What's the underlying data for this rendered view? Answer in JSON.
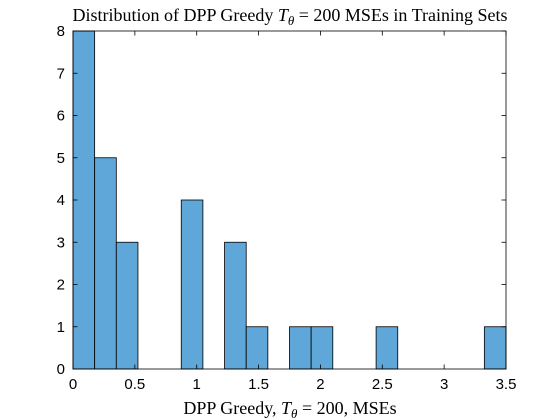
{
  "chart_data": {
    "type": "bar",
    "title": {
      "prefix": "Distribution of DPP Greedy ",
      "math_var": "T",
      "math_sub": "θ",
      "suffix": " = 200 MSEs in Training Sets"
    },
    "xlabel": {
      "prefix": "DPP Greedy, ",
      "math_var": "T",
      "math_sub": "θ",
      "suffix": " = 200, MSEs"
    },
    "ylabel": "",
    "xlim": [
      0,
      3.5
    ],
    "ylim": [
      0,
      8
    ],
    "x_ticks": [
      0,
      0.5,
      1,
      1.5,
      2,
      2.5,
      3,
      3.5
    ],
    "x_tick_labels": [
      "0",
      "0.5",
      "1",
      "1.5",
      "2",
      "2.5",
      "3",
      "3.5"
    ],
    "y_ticks": [
      0,
      1,
      2,
      3,
      4,
      5,
      6,
      7,
      8
    ],
    "y_tick_labels": [
      "0",
      "1",
      "2",
      "3",
      "4",
      "5",
      "6",
      "7",
      "8"
    ],
    "bins": [
      {
        "start": 0.0,
        "end": 0.175,
        "count": 8
      },
      {
        "start": 0.175,
        "end": 0.35,
        "count": 5
      },
      {
        "start": 0.35,
        "end": 0.525,
        "count": 3
      },
      {
        "start": 0.875,
        "end": 1.05,
        "count": 4
      },
      {
        "start": 1.225,
        "end": 1.4,
        "count": 3
      },
      {
        "start": 1.4,
        "end": 1.575,
        "count": 1
      },
      {
        "start": 1.75,
        "end": 1.925,
        "count": 1
      },
      {
        "start": 1.925,
        "end": 2.1,
        "count": 1
      },
      {
        "start": 2.45,
        "end": 2.625,
        "count": 1
      },
      {
        "start": 3.325,
        "end": 3.5,
        "count": 1
      }
    ],
    "bar_color": "#5fa7d9",
    "bar_edge_color": "#000000",
    "grid": false,
    "box": true
  }
}
